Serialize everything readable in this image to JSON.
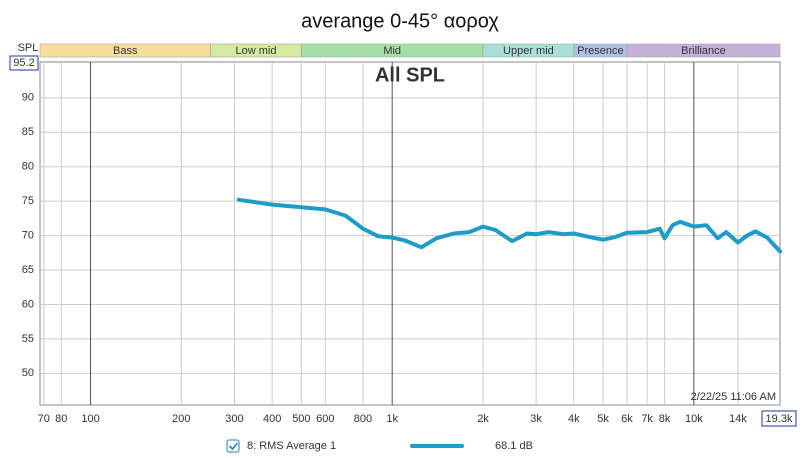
{
  "chart_data": {
    "type": "line",
    "title": "averange 0-45° αοροχ",
    "annotation": "All SPL",
    "y_label": "SPL",
    "timestamp": "2/22/25 11:06 AM",
    "log_x": true,
    "grid": true,
    "xlim": [
      68,
      19300
    ],
    "ylim": [
      45.4,
      95.2
    ],
    "xticks": [
      70,
      80,
      100,
      200,
      300,
      400,
      500,
      600,
      800,
      {
        "value": 1000,
        "label": "1k"
      },
      {
        "value": 2000,
        "label": "2k"
      },
      {
        "value": 3000,
        "label": "3k"
      },
      {
        "value": 4000,
        "label": "4k"
      },
      {
        "value": 5000,
        "label": "5k"
      },
      {
        "value": 6000,
        "label": "6k"
      },
      {
        "value": 7000,
        "label": "7k"
      },
      {
        "value": 8000,
        "label": "8k"
      },
      {
        "value": 10000,
        "label": "10k"
      },
      {
        "value": 14000,
        "label": "14k"
      },
      {
        "value": 19300,
        "label": "19.3k"
      }
    ],
    "yticks": [
      50,
      55,
      60,
      65,
      70,
      75,
      80,
      85,
      90,
      95.2
    ],
    "bands": [
      {
        "name": "Bass",
        "from": 68,
        "to": 250,
        "color": "#f8dc9c"
      },
      {
        "name": "Low mid",
        "from": 250,
        "to": 500,
        "color": "#d6e9a1"
      },
      {
        "name": "Mid",
        "from": 500,
        "to": 2000,
        "color": "#a5dfa6"
      },
      {
        "name": "Upper mid",
        "from": 2000,
        "to": 4000,
        "color": "#a8e0d8"
      },
      {
        "name": "Presence",
        "from": 4000,
        "to": 6000,
        "color": "#b4bfe7"
      },
      {
        "name": "Brilliance",
        "from": 6000,
        "to": 19300,
        "color": "#c4b0d9"
      }
    ],
    "x": [
      310,
      400,
      500,
      600,
      700,
      800,
      900,
      1000,
      1100,
      1250,
      1400,
      1600,
      1800,
      2000,
      2200,
      2500,
      2800,
      3000,
      3300,
      3700,
      4000,
      4500,
      5000,
      5500,
      6000,
      7000,
      7700,
      8000,
      8500,
      9000,
      10000,
      11000,
      12000,
      12800,
      14000,
      15000,
      16000,
      17500,
      19300
    ],
    "series": [
      {
        "name": "8: RMS Average 1",
        "legend_value": "68.1 dB",
        "color": "#1e9cc8",
        "values": [
          75.2,
          74.5,
          74.1,
          73.8,
          72.9,
          71.0,
          69.9,
          69.7,
          69.3,
          68.3,
          69.6,
          70.3,
          70.5,
          71.3,
          70.8,
          69.2,
          70.3,
          70.2,
          70.5,
          70.2,
          70.3,
          69.8,
          69.4,
          69.8,
          70.4,
          70.5,
          71.0,
          69.6,
          71.5,
          72.0,
          71.3,
          71.5,
          69.6,
          70.5,
          69.0,
          70.0,
          70.6,
          69.7,
          67.7
        ]
      }
    ]
  }
}
